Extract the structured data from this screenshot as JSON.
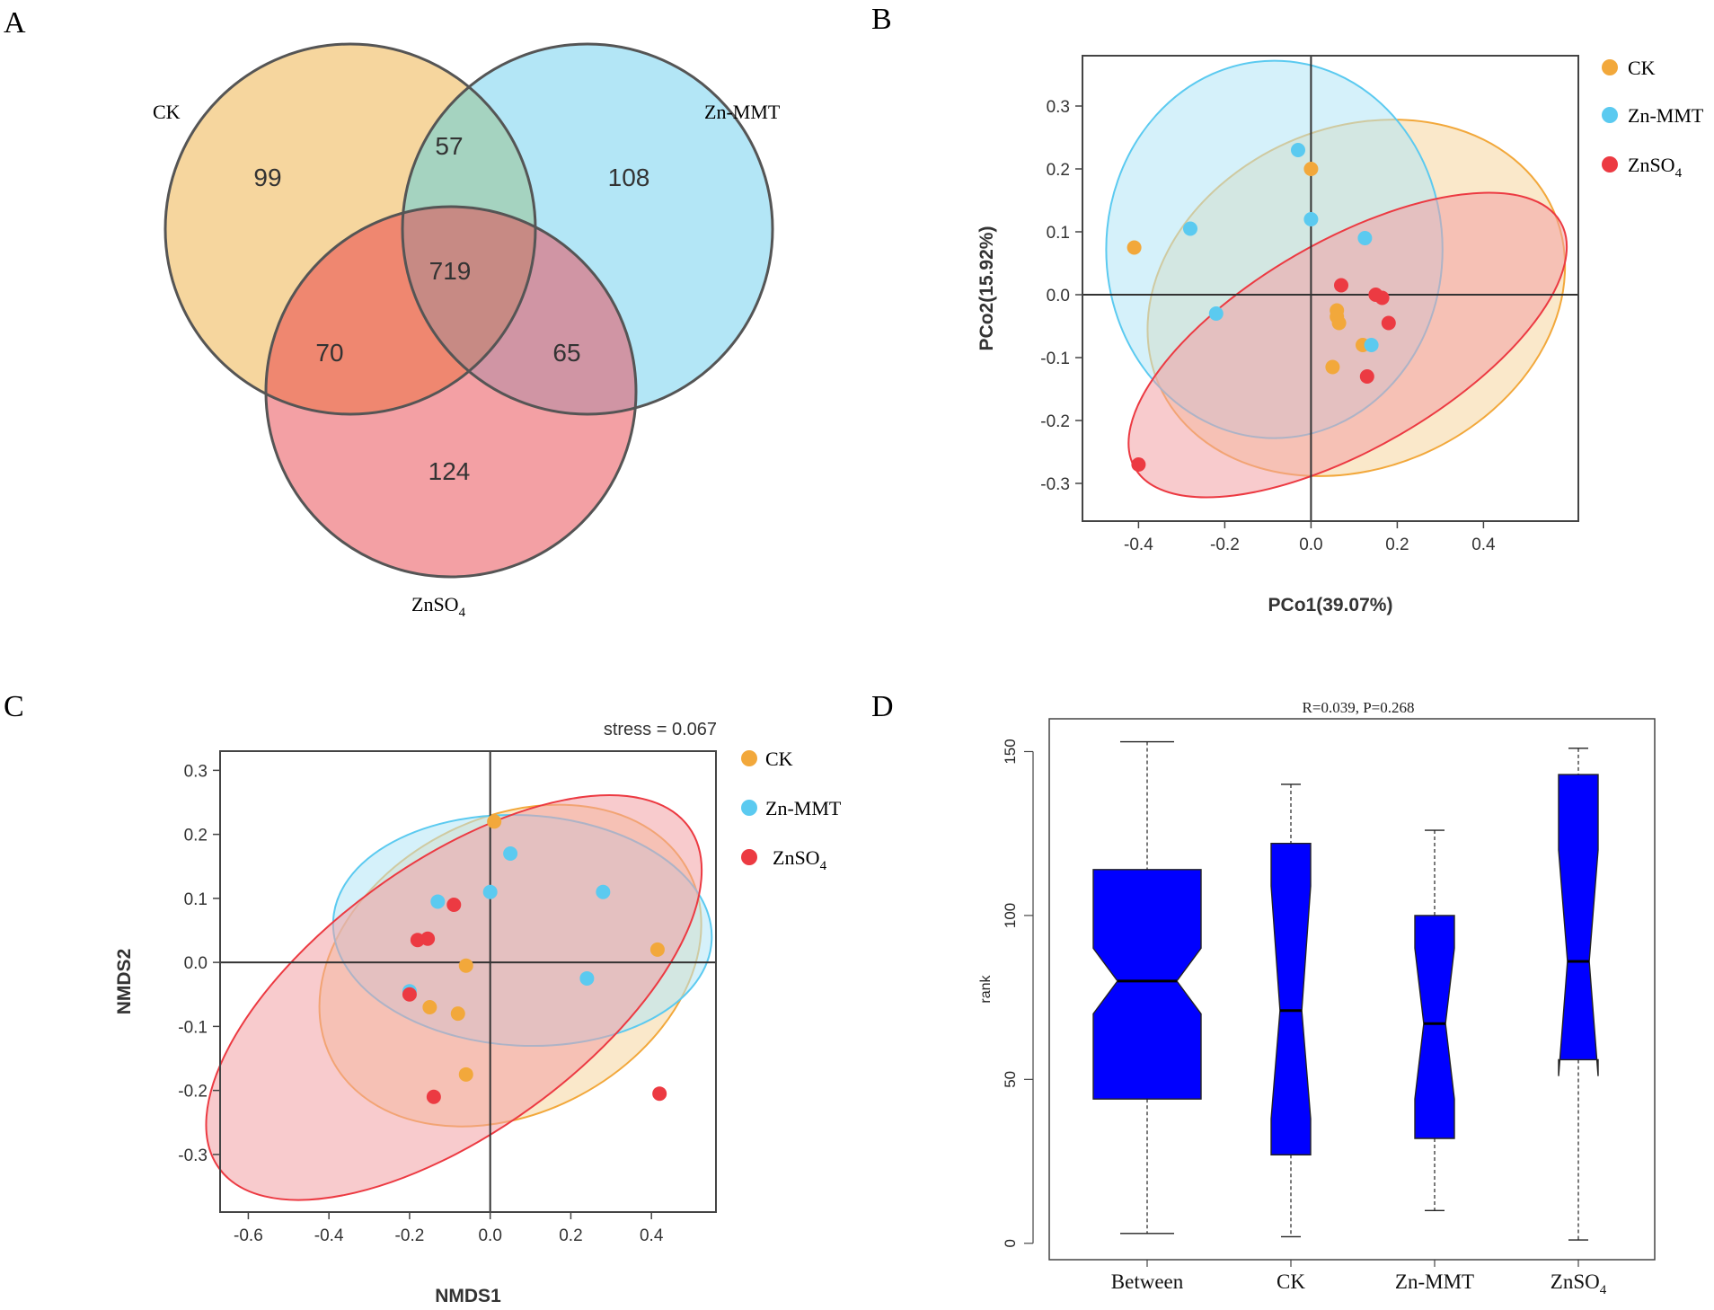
{
  "panel_labels": {
    "a": "A",
    "b": "B",
    "c": "C",
    "d": "D"
  },
  "colors": {
    "ck": "#f2a83b",
    "zn_mmt": "#5bcaf0",
    "znso4": "#ec3a42",
    "ck_fill": "#f6d69e",
    "zn_mmt_fill": "#b3e6f6",
    "znso4_fill": "#f3a0a4",
    "box_fill": "#0000ff"
  },
  "chart_data": [
    {
      "type": "venn",
      "panel": "A",
      "sets": [
        {
          "name": "CK",
          "sub": ""
        },
        {
          "name": "Zn-MMT",
          "sub": ""
        },
        {
          "name": "ZnSO",
          "sub": "4"
        }
      ],
      "regions": {
        "ck_only": "99",
        "zn_mmt_only": "108",
        "znso4_only": "124",
        "ck_zn_mmt": "57",
        "ck_znso4": "70",
        "zn_mmt_znso4": "65",
        "all": "719"
      }
    },
    {
      "type": "scatter",
      "panel": "B",
      "xlabel": "PCo1(39.07%)",
      "ylabel": "PCo2(15.92%)",
      "xlim": [
        -0.53,
        0.62
      ],
      "ylim": [
        -0.36,
        0.38
      ],
      "xticks": [
        -0.4,
        -0.2,
        0.0,
        0.2,
        0.4
      ],
      "xtick_labels": [
        "-0.4",
        "-0.2",
        "0.0",
        "0.2",
        "0.4"
      ],
      "yticks": [
        -0.3,
        -0.2,
        -0.1,
        0.0,
        0.1,
        0.2,
        0.3
      ],
      "ytick_labels": [
        "-0.3",
        "-0.2",
        "-0.1",
        "0.0",
        "0.1",
        "0.2",
        "0.3"
      ],
      "legend": [
        {
          "name": "CK",
          "sub": ""
        },
        {
          "name": "Zn-MMT",
          "sub": ""
        },
        {
          "name": "ZnSO",
          "sub": "4"
        }
      ],
      "series": [
        {
          "name": "CK",
          "x": [
            0.0,
            -0.41,
            0.06,
            0.06,
            0.065,
            0.12,
            0.05
          ],
          "y": [
            0.2,
            0.075,
            -0.025,
            -0.035,
            -0.045,
            -0.08,
            -0.115
          ]
        },
        {
          "name": "Zn-MMT",
          "x": [
            -0.03,
            -0.28,
            0.0,
            0.125,
            -0.22,
            0.14
          ],
          "y": [
            0.23,
            0.105,
            0.12,
            0.09,
            -0.03,
            -0.08
          ]
        },
        {
          "name": "ZnSO4",
          "x": [
            0.07,
            0.15,
            0.165,
            0.18,
            0.13,
            -0.4
          ],
          "y": [
            0.015,
            0.0,
            -0.005,
            -0.045,
            -0.13,
            -0.27
          ]
        }
      ],
      "ellipses": [
        {
          "name": "CK",
          "cx": 0.105,
          "cy": -0.005,
          "rx": 0.5,
          "ry": 0.27,
          "angle_deg": -24
        },
        {
          "name": "Zn-MMT",
          "cx": -0.085,
          "cy": 0.072,
          "rx": 0.39,
          "ry": 0.3,
          "angle_deg": 0
        },
        {
          "name": "ZnSO4",
          "cx": 0.085,
          "cy": -0.08,
          "rx": 0.57,
          "ry": 0.165,
          "angle_deg": -30
        }
      ]
    },
    {
      "type": "scatter",
      "panel": "C",
      "annotation": "stress = 0.067",
      "xlabel": "NMDS1",
      "ylabel": "NMDS2",
      "xlim": [
        -0.67,
        0.56
      ],
      "ylim": [
        -0.39,
        0.33
      ],
      "xticks": [
        -0.6,
        -0.4,
        -0.2,
        0.0,
        0.2,
        0.4
      ],
      "xtick_labels": [
        "-0.6",
        "-0.4",
        "-0.2",
        "0.0",
        "0.2",
        "0.4"
      ],
      "yticks": [
        -0.3,
        -0.2,
        -0.1,
        0.0,
        0.1,
        0.2,
        0.3
      ],
      "ytick_labels": [
        "-0.3",
        "-0.2",
        "-0.1",
        "0.0",
        "0.1",
        "0.2",
        "0.3"
      ],
      "legend": [
        {
          "name": "CK",
          "sub": ""
        },
        {
          "name": "Zn-MMT",
          "sub": ""
        },
        {
          "name": "ZnSO",
          "sub": "4"
        }
      ],
      "series": [
        {
          "name": "CK",
          "x": [
            0.01,
            0.415,
            -0.06,
            -0.15,
            -0.08,
            -0.06
          ],
          "y": [
            0.22,
            0.02,
            -0.005,
            -0.07,
            -0.08,
            -0.175
          ]
        },
        {
          "name": "Zn-MMT",
          "x": [
            0.05,
            -0.13,
            0.0,
            0.28,
            0.24,
            -0.2
          ],
          "y": [
            0.17,
            0.095,
            0.11,
            0.11,
            -0.025,
            -0.045
          ]
        },
        {
          "name": "ZnSO4",
          "x": [
            -0.09,
            -0.18,
            -0.155,
            -0.2,
            -0.14,
            0.42
          ],
          "y": [
            0.09,
            0.035,
            0.037,
            -0.05,
            -0.21,
            -0.205
          ]
        }
      ],
      "ellipses": [
        {
          "name": "CK",
          "cx": 0.05,
          "cy": -0.005,
          "rx": 0.5,
          "ry": 0.23,
          "angle_deg": -28
        },
        {
          "name": "Zn-MMT",
          "cx": 0.08,
          "cy": 0.05,
          "rx": 0.47,
          "ry": 0.18,
          "angle_deg": 3
        },
        {
          "name": "ZnSO4",
          "cx": -0.09,
          "cy": -0.055,
          "rx": 0.72,
          "ry": 0.21,
          "angle_deg": -36
        }
      ]
    },
    {
      "type": "boxplot",
      "panel": "D",
      "title": "R=0.039, P=0.268",
      "ylabel": "rank",
      "ylim": [
        -5,
        160
      ],
      "yticks": [
        0,
        50,
        100,
        150
      ],
      "ytick_labels": [
        "0",
        "50",
        "100",
        "150"
      ],
      "categories": [
        {
          "name": "Between",
          "sub": ""
        },
        {
          "name": "CK",
          "sub": ""
        },
        {
          "name": "Zn-MMT",
          "sub": ""
        },
        {
          "name": "ZnSO",
          "sub": "4"
        }
      ],
      "boxes": [
        {
          "min": 3,
          "q1": 44,
          "median": 80,
          "q3": 114,
          "max": 153,
          "notch_lo": 70,
          "notch_hi": 90
        },
        {
          "min": 2,
          "q1": 27,
          "median": 71,
          "q3": 122,
          "max": 140,
          "notch_lo": 38,
          "notch_hi": 109
        },
        {
          "min": 10,
          "q1": 32,
          "median": 67,
          "q3": 100,
          "max": 126,
          "notch_lo": 44,
          "notch_hi": 90
        },
        {
          "min": 1,
          "q1": 56,
          "median": 86,
          "q3": 143,
          "max": 151,
          "notch_lo": 51,
          "notch_hi": 120
        }
      ]
    }
  ]
}
